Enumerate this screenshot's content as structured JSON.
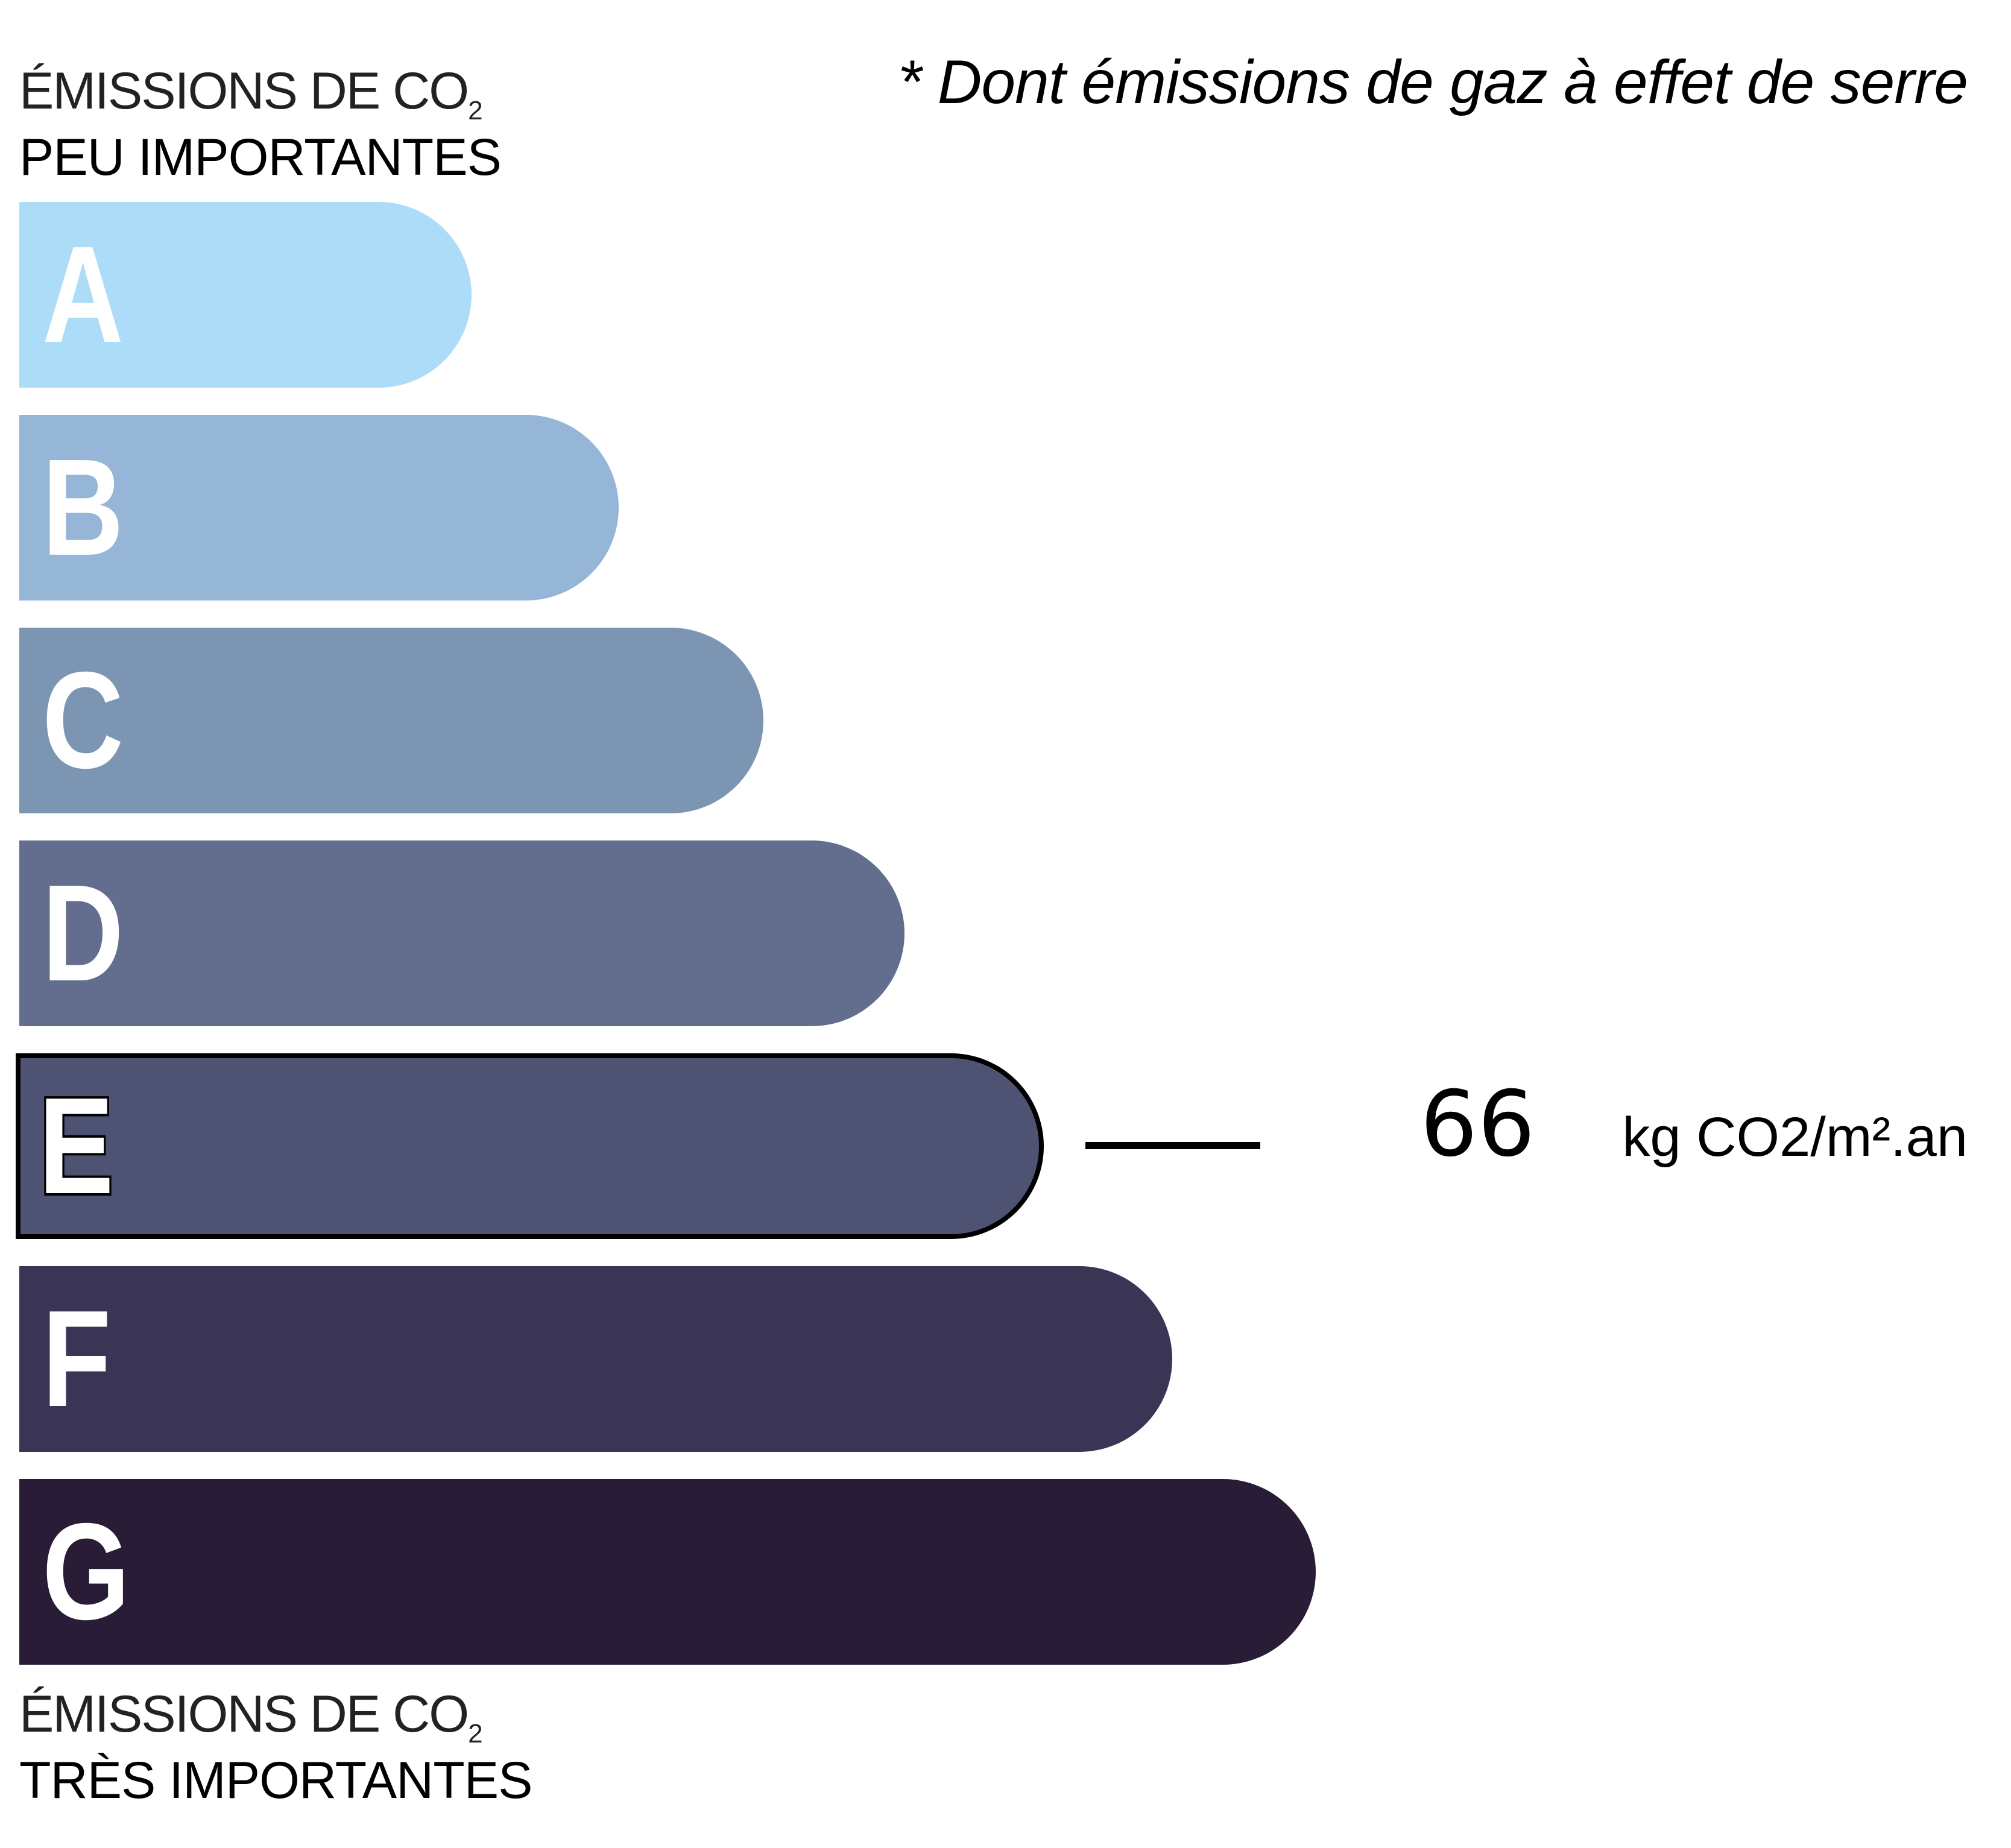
{
  "note": "* Dont émissions de gaz à effet de serre",
  "top_caption": {
    "line1": "ÉMISSIONS DE CO",
    "line1_sub": "2",
    "line2": "PEU IMPORTANTES"
  },
  "bottom_caption": {
    "line1": "ÉMISSIONS DE CO",
    "line1_sub": "2",
    "line2": "TRÈS IMPORTANTES"
  },
  "scale": [
    {
      "letter": "A",
      "color": "#acdcf7"
    },
    {
      "letter": "B",
      "color": "#95b6d6"
    },
    {
      "letter": "C",
      "color": "#7b95b3"
    },
    {
      "letter": "D",
      "color": "#636e8e"
    },
    {
      "letter": "E",
      "color": "#4e5374"
    },
    {
      "letter": "F",
      "color": "#3a3555"
    },
    {
      "letter": "G",
      "color": "#281c36"
    }
  ],
  "selected_class": "E",
  "result": {
    "value": "66",
    "unit": "kg CO2/m².an"
  }
}
